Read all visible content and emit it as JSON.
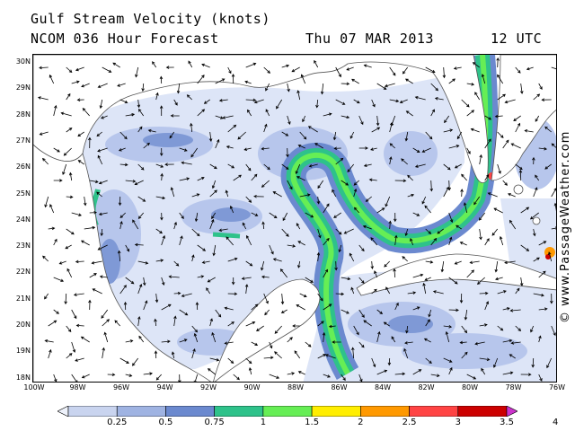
{
  "header": {
    "title": "Gulf Stream Velocity (knots)",
    "model": "NCOM 036 Hour Forecast",
    "date": "Thu 07 MAR 2013",
    "time": "12 UTC"
  },
  "credit": "© www.PassageWeather.com",
  "map": {
    "lat_labels": [
      "30N",
      "29N",
      "28N",
      "27N",
      "26N",
      "25N",
      "24N",
      "23N",
      "22N",
      "21N",
      "20N",
      "19N",
      "18N"
    ],
    "lon_labels": [
      "100W",
      "98W",
      "96W",
      "94W",
      "92W",
      "90W",
      "88W",
      "86W",
      "84W",
      "82W",
      "80W",
      "78W",
      "76W"
    ],
    "colors": {
      "land": "#ffffff",
      "vector": "#000000"
    }
  },
  "legend": {
    "labels": [
      "0.25",
      "0.5",
      "0.75",
      "1",
      "1.5",
      "2",
      "2.5",
      "3",
      "3.5",
      "4"
    ],
    "colors": [
      "#eef2fb",
      "#c9d4ef",
      "#9fb3e2",
      "#6b89cf",
      "#2ec28a",
      "#66ee55",
      "#ffee00",
      "#ff9900",
      "#ff4444",
      "#cc0000",
      "#cc33cc"
    ]
  }
}
